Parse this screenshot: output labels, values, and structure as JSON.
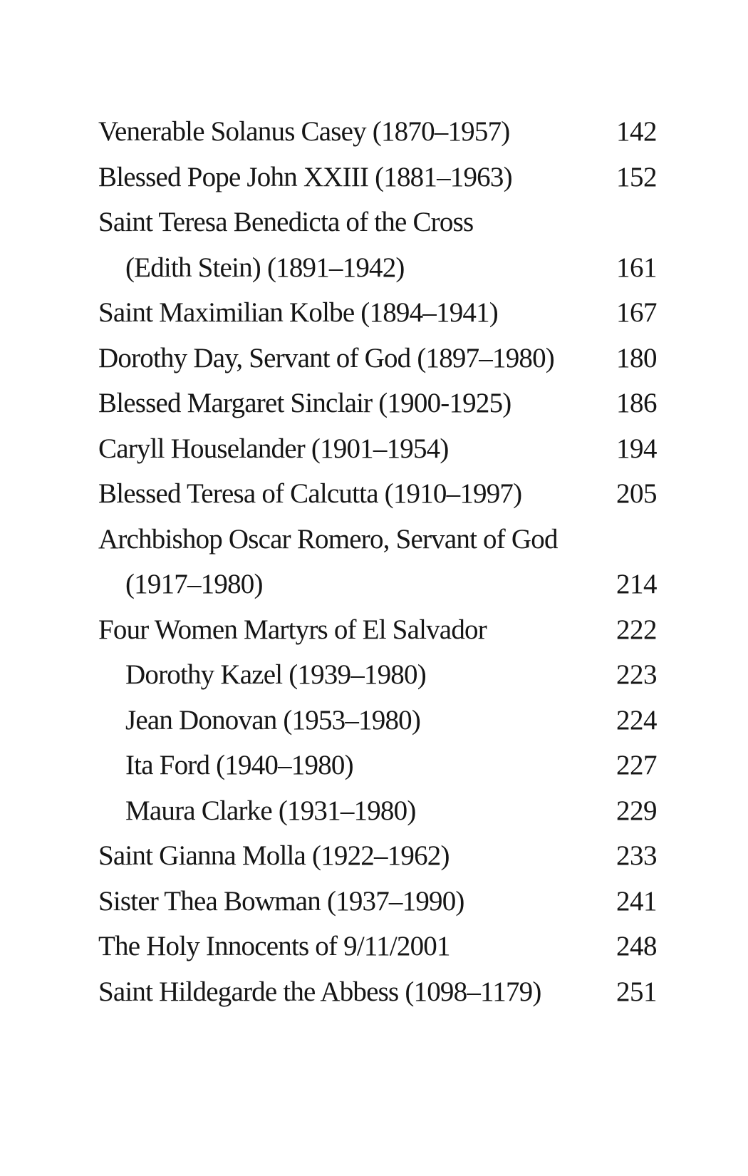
{
  "page": {
    "background_color": "#ffffff",
    "text_color": "#161616",
    "kind": "book-table-of-contents"
  },
  "toc": {
    "entries": [
      {
        "title": "Venerable Solanus Casey (1870–1957)",
        "page": "142",
        "indent": 0
      },
      {
        "title": "Blessed Pope John XXIII (1881–1963)",
        "page": "152",
        "indent": 0
      },
      {
        "title": "Saint Teresa Benedicta of the Cross",
        "page": "",
        "indent": 0
      },
      {
        "title": "(Edith Stein) (1891–1942)",
        "page": "161",
        "indent": 1
      },
      {
        "title": "Saint Maximilian Kolbe (1894–1941)",
        "page": "167",
        "indent": 0
      },
      {
        "title": "Dorothy Day, Servant of God (1897–1980)",
        "page": "180",
        "indent": 0
      },
      {
        "title": "Blessed Margaret Sinclair (1900-1925)",
        "page": "186",
        "indent": 0
      },
      {
        "title": "Caryll Houselander (1901–1954)",
        "page": "194",
        "indent": 0
      },
      {
        "title": "Blessed Teresa of Calcutta (1910–1997)",
        "page": "205",
        "indent": 0
      },
      {
        "title": "Archbishop Oscar Romero, Servant of God",
        "page": "",
        "indent": 0
      },
      {
        "title": "(1917–1980)",
        "page": "214",
        "indent": 1
      },
      {
        "title": "Four Women Martyrs of El Salvador",
        "page": "222",
        "indent": 0
      },
      {
        "title": "Dorothy Kazel (1939–1980)",
        "page": "223",
        "indent": 1
      },
      {
        "title": "Jean Donovan (1953–1980)",
        "page": "224",
        "indent": 1
      },
      {
        "title": "Ita Ford (1940–1980)",
        "page": "227",
        "indent": 1
      },
      {
        "title": "Maura Clarke (1931–1980)",
        "page": "229",
        "indent": 1
      },
      {
        "title": "Saint Gianna Molla (1922–1962)",
        "page": "233",
        "indent": 0
      },
      {
        "title": "Sister Thea Bowman (1937–1990)",
        "page": "241",
        "indent": 0
      },
      {
        "title": "The Holy Innocents of 9/11/2001",
        "page": "248",
        "indent": 0
      },
      {
        "title": "Saint Hildegarde the Abbess (1098–1179)",
        "page": "251",
        "indent": 0
      }
    ]
  }
}
